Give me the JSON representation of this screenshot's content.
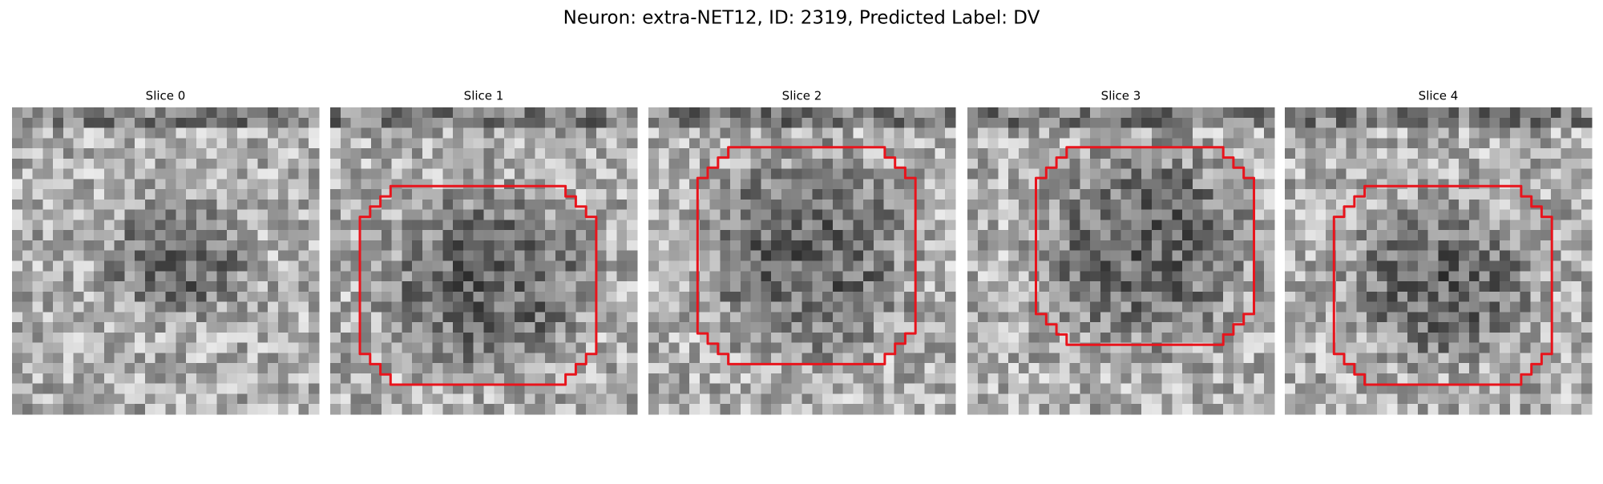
{
  "title": "Neuron: extra-NET12, ID: 2319, Predicted Label: DV",
  "panels": [
    {
      "title": "Slice 0"
    },
    {
      "title": "Slice 1"
    },
    {
      "title": "Slice 2"
    },
    {
      "title": "Slice 3"
    },
    {
      "title": "Slice 4"
    }
  ]
}
